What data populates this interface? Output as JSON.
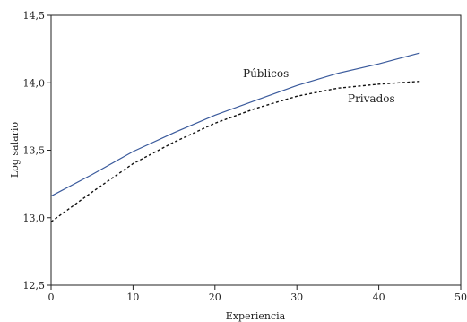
{
  "chart_data": {
    "type": "line",
    "title": "",
    "xlabel": "Experiencia",
    "ylabel": "Log salario",
    "xlim": [
      0,
      50
    ],
    "ylim": [
      12.5,
      14.5
    ],
    "x_ticks": [
      0,
      10,
      20,
      30,
      40,
      50
    ],
    "y_ticks": [
      12.5,
      13.0,
      13.5,
      14.0,
      14.5
    ],
    "x_tick_labels": [
      "0",
      "10",
      "20",
      "30",
      "40",
      "50"
    ],
    "y_tick_labels": [
      "12,5",
      "13,0",
      "13,5",
      "14,0",
      "14,5"
    ],
    "grid": false,
    "legend": "inline-labels",
    "series": [
      {
        "name": "Públicos",
        "color": "#3a5a9c",
        "style": "solid",
        "x": [
          0,
          5,
          10,
          15,
          20,
          25,
          30,
          35,
          40,
          45
        ],
        "y": [
          13.16,
          13.32,
          13.49,
          13.63,
          13.76,
          13.87,
          13.98,
          14.07,
          14.14,
          14.22
        ]
      },
      {
        "name": "Privados",
        "color": "#111111",
        "style": "dashed",
        "x": [
          0,
          5,
          10,
          15,
          20,
          25,
          30,
          35,
          40,
          45
        ],
        "y": [
          12.97,
          13.19,
          13.4,
          13.56,
          13.7,
          13.81,
          13.9,
          13.96,
          13.99,
          14.01
        ]
      }
    ]
  }
}
